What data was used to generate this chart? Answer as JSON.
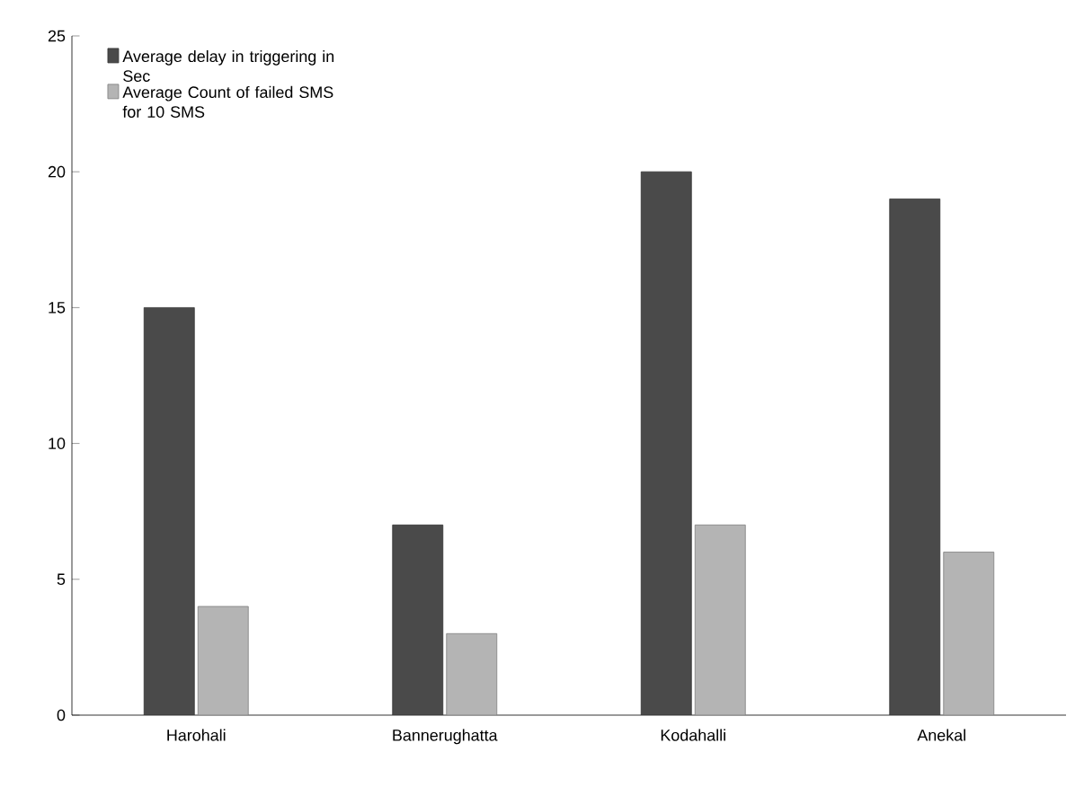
{
  "chart_data": {
    "type": "bar",
    "categories": [
      "Harohali",
      "Bannerughatta",
      "Kodahalli",
      "Anekal"
    ],
    "series": [
      {
        "name": "Average delay in triggering in Sec",
        "color": "#4a4a4a",
        "values": [
          15,
          7,
          20,
          19
        ]
      },
      {
        "name": "Average Count of failed SMS for 10 SMS",
        "color": "#b4b4b4",
        "values": [
          4,
          3,
          7,
          6
        ]
      }
    ],
    "ylim": [
      0,
      25
    ],
    "yticks": [
      0,
      5,
      10,
      15,
      20,
      25
    ],
    "grid": false,
    "legend": "top left"
  }
}
